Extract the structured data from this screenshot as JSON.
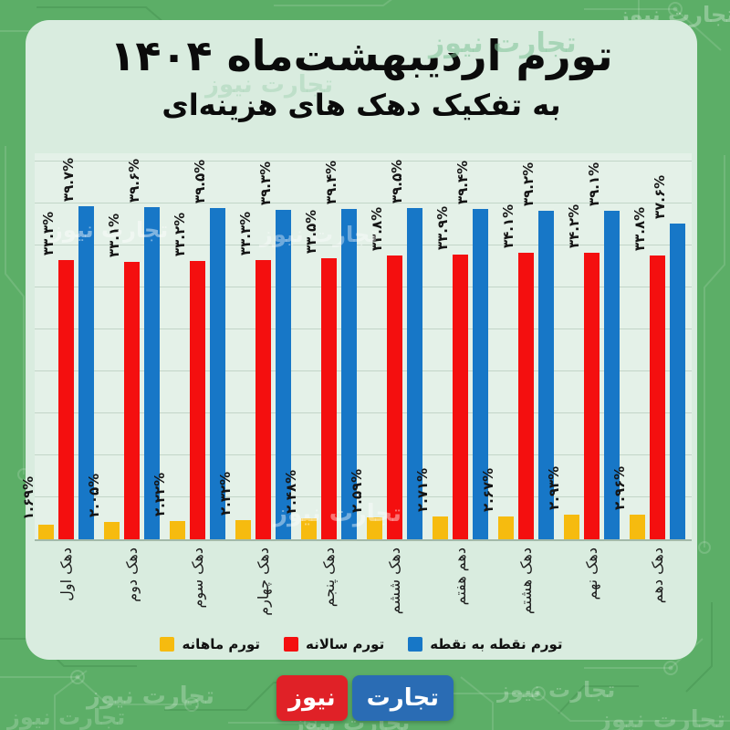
{
  "title": "تورم اردیبهشت‌ماه ۱۴۰۴",
  "subtitle": "به تفکیک دهک های هزینه‌ای",
  "watermark_text": "تجارت نیوز",
  "brand": {
    "name_right": "تجارت",
    "name_left": "نیوز"
  },
  "legend": [
    {
      "key": "monthly",
      "label": "تورم ماهانه",
      "color": "#f6bb0f"
    },
    {
      "key": "annual",
      "label": "تورم سالانه",
      "color": "#f40f0f"
    },
    {
      "key": "point_to_point",
      "label": "تورم نقطه به نقطه",
      "color": "#1777c7"
    }
  ],
  "chart_data": {
    "type": "bar",
    "title": "تورم اردیبهشت‌ماه ۱۴۰۴ به تفکیک دهک های هزینه‌ای",
    "xlabel": "",
    "ylabel": "",
    "unit": "%",
    "ylim": [
      0,
      46
    ],
    "grid": true,
    "grid_step": 5,
    "legend_position": "bottom",
    "value_labels": true,
    "categories": [
      "دهک اول",
      "دهک دوم",
      "دهک سوم",
      "دهک چهارم",
      "دهک پنجم",
      "دهک ششم",
      "دهم هفتم",
      "دهک هشتم",
      "دهک نهم",
      "دهک دهم"
    ],
    "series": [
      {
        "name": "تورم ماهانه",
        "key": "monthly",
        "color": "#f6bb0f",
        "values": [
          1.69,
          2.05,
          2.22,
          2.32,
          2.48,
          2.59,
          2.71,
          2.67,
          2.93,
          2.96
        ],
        "labels": [
          "۱.۶۹%",
          "۲.۰۵%",
          "۲.۲۲%",
          "۲.۳۲%",
          "۲.۴۸%",
          "۲.۵۹%",
          "۲.۷۱%",
          "۲.۶۷%",
          "۲.۹۳%",
          "۲.۹۶%"
        ]
      },
      {
        "name": "تورم سالانه",
        "key": "annual",
        "color": "#f40f0f",
        "values": [
          33.3,
          33.1,
          33.2,
          33.3,
          33.5,
          33.8,
          33.9,
          34.1,
          34.2,
          33.8
        ],
        "labels": [
          "۳۳.۳%",
          "۳۳.۱%",
          "۳۳.۲%",
          "۳۳.۳%",
          "۳۳.۵%",
          "۳۳.۸%",
          "۳۳.۹%",
          "۳۴.۱%",
          "۳۴.۲%",
          "۳۳.۸%"
        ]
      },
      {
        "name": "تورم نقطه به نقطه",
        "key": "point_to_point",
        "color": "#1777c7",
        "values": [
          39.7,
          39.6,
          39.5,
          39.3,
          39.4,
          39.5,
          39.4,
          39.2,
          39.1,
          37.6
        ],
        "labels": [
          "۳۹.۷%",
          "۳۹.۶%",
          "۳۹.۵%",
          "۳۹.۳%",
          "۳۹.۴%",
          "۳۹.۵%",
          "۳۹.۴%",
          "۳۹.۲%",
          "۳۹.۱%",
          "۳۷.۶%"
        ]
      }
    ]
  }
}
